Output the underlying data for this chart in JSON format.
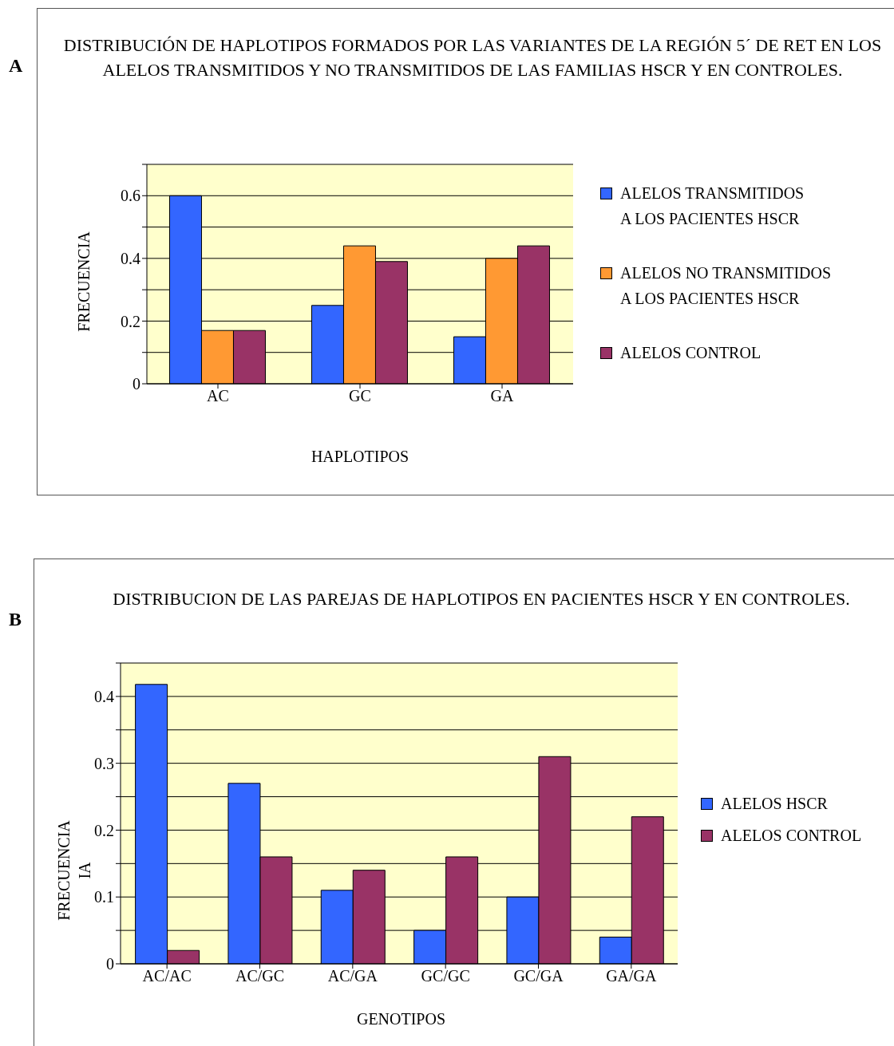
{
  "chart_data": [
    {
      "type": "bar",
      "title": "DISTRIBUCIÓN DE HAPLOTIPOS FORMADOS POR LAS VARIANTES DE LA REGIÓN 5´ DE RET EN LOS ALELOS TRANSMITIDOS Y NO TRANSMITIDOS DE LAS FAMILIAS HSCR Y EN CONTROLES.",
      "xlabel": "HAPLOTIPOS",
      "ylabel": "FRECUENCIA",
      "annotations": [
        "A"
      ],
      "categories": [
        "AC",
        "GC",
        "GA"
      ],
      "series": [
        {
          "name": "ALELOS TRANSMITIDOS\nA LOS PACIENTES HSCR",
          "color": "#3366ff",
          "values": [
            0.6,
            0.25,
            0.15
          ]
        },
        {
          "name": "ALELOS NO TRANSMITIDOS\nA LOS PACIENTES HSCR",
          "color": "#ff9933",
          "values": [
            0.17,
            0.44,
            0.4
          ]
        },
        {
          "name": "ALELOS CONTROL",
          "color": "#993366",
          "values": [
            0.17,
            0.39,
            0.44
          ]
        }
      ],
      "ylim": [
        0,
        0.7
      ],
      "yticks": [
        0,
        {
          "value": 0.1,
          "label": null
        },
        0.2,
        {
          "value": 0.3,
          "label": null
        },
        0.4,
        {
          "value": 0.5,
          "label": null
        },
        0.6,
        {
          "value": 0.7,
          "label": null
        }
      ],
      "grid": "y",
      "legend": "right"
    },
    {
      "type": "bar",
      "title": "DISTRIBUCION DE LAS PAREJAS DE HAPLOTIPOS EN PACIENTES HSCR Y EN CONTROLES.",
      "xlabel": "GENOTIPOS",
      "ylabel": "FRECUENCIA\nIA",
      "annotations": [
        "B"
      ],
      "categories": [
        "AC/AC",
        "AC/GC",
        "AC/GA",
        "GC/GC",
        "GC/GA",
        "GA/GA"
      ],
      "series": [
        {
          "name": "ALELOS HSCR",
          "color": "#3366ff",
          "values": [
            0.418,
            0.27,
            0.11,
            0.05,
            0.1,
            0.04
          ]
        },
        {
          "name": "ALELOS CONTROL",
          "color": "#993366",
          "values": [
            0.02,
            0.16,
            0.14,
            0.16,
            0.31,
            0.22
          ]
        }
      ],
      "ylim": [
        0,
        0.45
      ],
      "yticks": [
        0,
        {
          "value": 0.05,
          "label": null
        },
        0.1,
        {
          "value": 0.15,
          "label": null
        },
        0.2,
        {
          "value": 0.25,
          "label": null
        },
        0.3,
        {
          "value": 0.35,
          "label": null
        },
        0.4,
        {
          "value": 0.45,
          "label": null
        }
      ],
      "grid": "y",
      "legend": "right"
    }
  ]
}
